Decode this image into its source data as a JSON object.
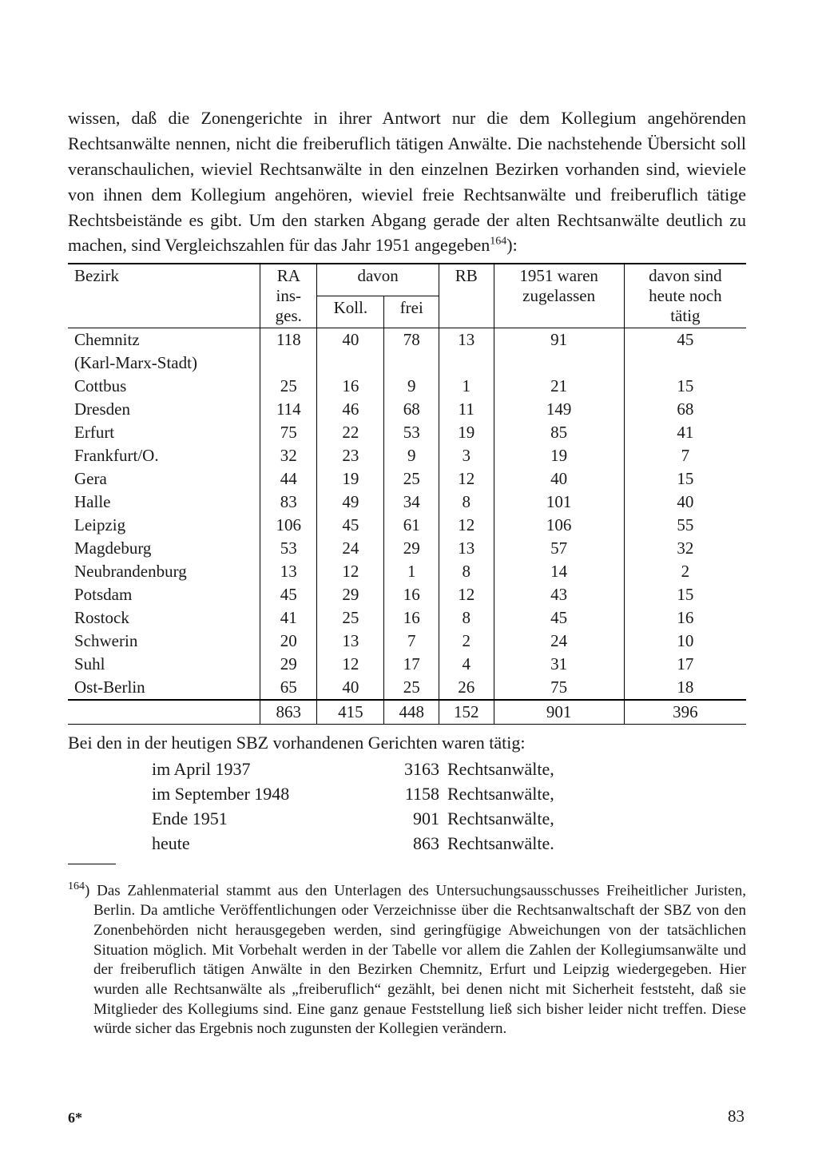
{
  "intro_text": "wissen, daß die Zonengerichte in ihrer Antwort nur die dem Kollegium angehörenden Rechtsanwälte nennen, nicht die freiberuflich tätigen Anwälte. Die nachstehende Übersicht soll veranschaulichen, wieviel Rechtsanwälte in den einzelnen Bezirken vorhanden sind, wieviele von ihnen dem Kollegium angehören, wieviel freie Rechtsanwälte und freiberuflich tätige Rechtsbeistände es gibt. Um den starken Abgang gerade der alten Rechtsanwälte deutlich zu machen, sind Vergleichszahlen für das Jahr 1951 angegeben",
  "footnote_marker": "164",
  "intro_tail": "):",
  "table": {
    "headers": {
      "bezirk": "Bezirk",
      "ra_ins_ges_l1": "RA",
      "ra_ins_ges_l2": "ins-",
      "ra_ins_ges_l3": "ges.",
      "davon": "davon",
      "koll": "Koll.",
      "frei": "frei",
      "rb": "RB",
      "y1951_l1": "1951 waren",
      "y1951_l2": "zugelassen",
      "heute_l1": "davon sind",
      "heute_l2": "heute noch",
      "heute_l3": "tätig"
    },
    "rows": [
      {
        "bezirk_l1": "Chemnitz",
        "bezirk_l2": "(Karl-Marx-Stadt)",
        "ra": "118",
        "koll": "40",
        "frei": "78",
        "rb": "13",
        "y": "91",
        "h": "45"
      },
      {
        "bezirk_l1": "Cottbus",
        "ra": "25",
        "koll": "16",
        "frei": "9",
        "rb": "1",
        "y": "21",
        "h": "15"
      },
      {
        "bezirk_l1": "Dresden",
        "ra": "114",
        "koll": "46",
        "frei": "68",
        "rb": "11",
        "y": "149",
        "h": "68"
      },
      {
        "bezirk_l1": "Erfurt",
        "ra": "75",
        "koll": "22",
        "frei": "53",
        "rb": "19",
        "y": "85",
        "h": "41"
      },
      {
        "bezirk_l1": "Frankfurt/O.",
        "ra": "32",
        "koll": "23",
        "frei": "9",
        "rb": "3",
        "y": "19",
        "h": "7"
      },
      {
        "bezirk_l1": "Gera",
        "ra": "44",
        "koll": "19",
        "frei": "25",
        "rb": "12",
        "y": "40",
        "h": "15"
      },
      {
        "bezirk_l1": "Halle",
        "ra": "83",
        "koll": "49",
        "frei": "34",
        "rb": "8",
        "y": "101",
        "h": "40"
      },
      {
        "bezirk_l1": "Leipzig",
        "ra": "106",
        "koll": "45",
        "frei": "61",
        "rb": "12",
        "y": "106",
        "h": "55"
      },
      {
        "bezirk_l1": "Magdeburg",
        "ra": "53",
        "koll": "24",
        "frei": "29",
        "rb": "13",
        "y": "57",
        "h": "32"
      },
      {
        "bezirk_l1": "Neubrandenburg",
        "ra": "13",
        "koll": "12",
        "frei": "1",
        "rb": "8",
        "y": "14",
        "h": "2"
      },
      {
        "bezirk_l1": "Potsdam",
        "ra": "45",
        "koll": "29",
        "frei": "16",
        "rb": "12",
        "y": "43",
        "h": "15"
      },
      {
        "bezirk_l1": "Rostock",
        "ra": "41",
        "koll": "25",
        "frei": "16",
        "rb": "8",
        "y": "45",
        "h": "16"
      },
      {
        "bezirk_l1": "Schwerin",
        "ra": "20",
        "koll": "13",
        "frei": "7",
        "rb": "2",
        "y": "24",
        "h": "10"
      },
      {
        "bezirk_l1": "Suhl",
        "ra": "29",
        "koll": "12",
        "frei": "17",
        "rb": "4",
        "y": "31",
        "h": "17"
      },
      {
        "bezirk_l1": "Ost-Berlin",
        "ra": "65",
        "koll": "40",
        "frei": "25",
        "rb": "26",
        "y": "75",
        "h": "18"
      }
    ],
    "totals": {
      "ra": "863",
      "koll": "415",
      "frei": "448",
      "rb": "152",
      "y": "901",
      "h": "396"
    }
  },
  "after_table_text": "Bei den in der heutigen SBZ vorhandenen Gerichten waren tätig:",
  "history": [
    {
      "when": "im April 1937",
      "num": "3163",
      "label": "Rechtsanwälte,"
    },
    {
      "when": "im September 1948",
      "num": "1158",
      "label": "Rechtsanwälte,"
    },
    {
      "when": "Ende 1951",
      "num": "901",
      "label": "Rechtsanwälte,"
    },
    {
      "when": "heute",
      "num": "863",
      "label": "Rechtsanwälte."
    }
  ],
  "footnote_text": ") Das Zahlenmaterial stammt aus den Unterlagen des Untersuchungsausschusses Freiheitlicher Juristen, Berlin. Da amtliche Veröffentlichungen oder Verzeichnisse über die Rechtsanwaltschaft der SBZ von den Zonenbehörden nicht herausgegeben werden, sind geringfügige Abweichungen von der tatsächlichen Situation möglich. Mit Vorbehalt werden in der Tabelle vor allem die Zahlen der Kollegiumsanwälte und der freiberuflich tätigen Anwälte in den Bezirken Chemnitz, Erfurt und Leipzig wiedergegeben. Hier wurden alle Rechtsanwälte als „freiberuflich“ gezählt, bei denen nicht mit Sicherheit feststeht, daß sie Mitglieder des Kollegiums sind. Eine ganz genaue Feststellung ließ sich bisher leider nicht treffen. Diese würde sicher das Ergebnis noch zugunsten der Kollegien verändern.",
  "sig": "6*",
  "page_number": "83"
}
